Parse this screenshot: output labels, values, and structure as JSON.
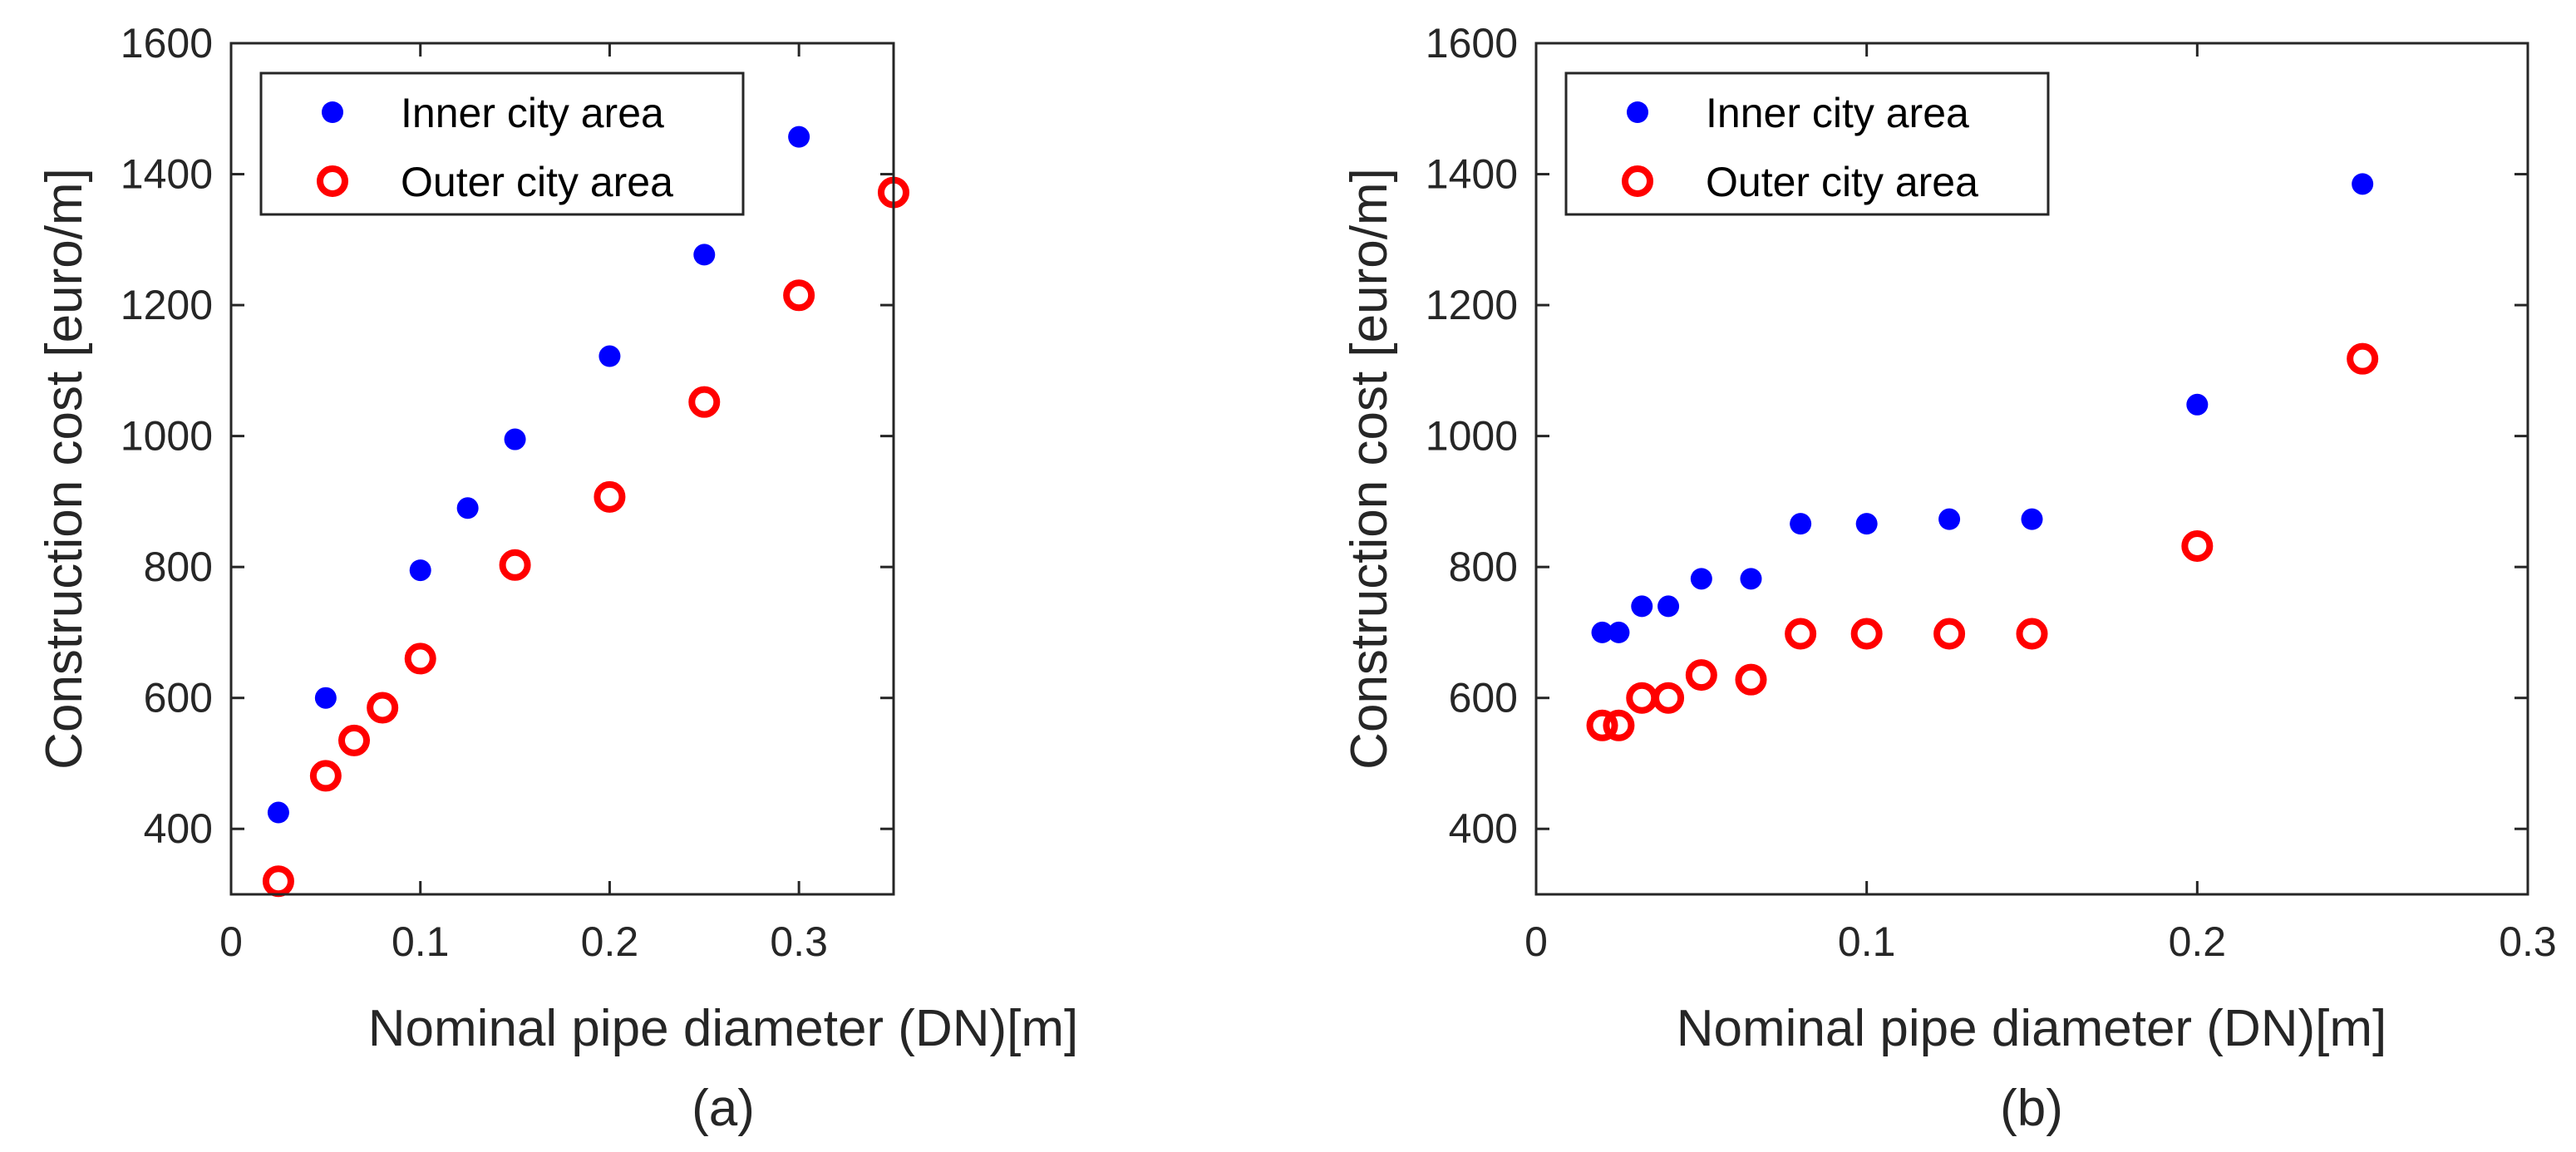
{
  "colors": {
    "inner": "#0000ff",
    "outer": "#ff0000",
    "axis": "#262626"
  },
  "chart_data": [
    {
      "type": "scatter",
      "caption": "(a)",
      "xlabel": "Nominal pipe diameter (DN)[m]",
      "ylabel": "Construction cost [euro/m]",
      "xlim": [
        0,
        0.35
      ],
      "ylim": [
        300,
        1600
      ],
      "xticks": [
        0,
        0.1,
        0.2,
        0.3
      ],
      "xtick_labels": [
        "0",
        "0.1",
        "0.2",
        "0.3"
      ],
      "yticks": [
        400,
        600,
        800,
        1000,
        1200,
        1400,
        1600
      ],
      "ytick_labels": [
        "400",
        "600",
        "800",
        "1000",
        "1200",
        "1400",
        "1600"
      ],
      "legend_location": "top-left",
      "series": [
        {
          "name": "Inner city area",
          "marker": "filled-circle",
          "x": [
            0.025,
            0.05,
            0.1,
            0.125,
            0.15,
            0.2,
            0.25,
            0.3
          ],
          "y": [
            425,
            600,
            795,
            890,
            995,
            1122,
            1277,
            1457
          ]
        },
        {
          "name": "Outer city area",
          "marker": "open-circle",
          "x": [
            0.025,
            0.05,
            0.065,
            0.08,
            0.1,
            0.15,
            0.2,
            0.25,
            0.3,
            0.35
          ],
          "y": [
            320,
            481,
            535,
            585,
            660,
            803,
            907,
            1052,
            1215,
            1372
          ]
        }
      ]
    },
    {
      "type": "scatter",
      "caption": "(b)",
      "xlabel": "Nominal pipe diameter (DN)[m]",
      "ylabel": "Construction cost [euro/m]",
      "xlim": [
        0,
        0.3
      ],
      "ylim": [
        300,
        1600
      ],
      "xticks": [
        0,
        0.1,
        0.2,
        0.3
      ],
      "xtick_labels": [
        "0",
        "0.1",
        "0.2",
        "0.3"
      ],
      "yticks": [
        400,
        600,
        800,
        1000,
        1200,
        1400,
        1600
      ],
      "ytick_labels": [
        "400",
        "600",
        "800",
        "1000",
        "1200",
        "1400",
        "1600"
      ],
      "legend_location": "top-left",
      "series": [
        {
          "name": "Inner city area",
          "marker": "filled-circle",
          "x": [
            0.02,
            0.025,
            0.032,
            0.04,
            0.05,
            0.065,
            0.08,
            0.1,
            0.125,
            0.15,
            0.2,
            0.25
          ],
          "y": [
            700,
            700,
            740,
            740,
            782,
            782,
            866,
            866,
            873,
            873,
            1048,
            1385
          ]
        },
        {
          "name": "Outer city area",
          "marker": "open-circle",
          "x": [
            0.02,
            0.025,
            0.032,
            0.04,
            0.05,
            0.065,
            0.08,
            0.1,
            0.125,
            0.15,
            0.2,
            0.25
          ],
          "y": [
            558,
            558,
            600,
            600,
            635,
            628,
            698,
            698,
            698,
            698,
            832,
            1118
          ]
        }
      ]
    }
  ]
}
